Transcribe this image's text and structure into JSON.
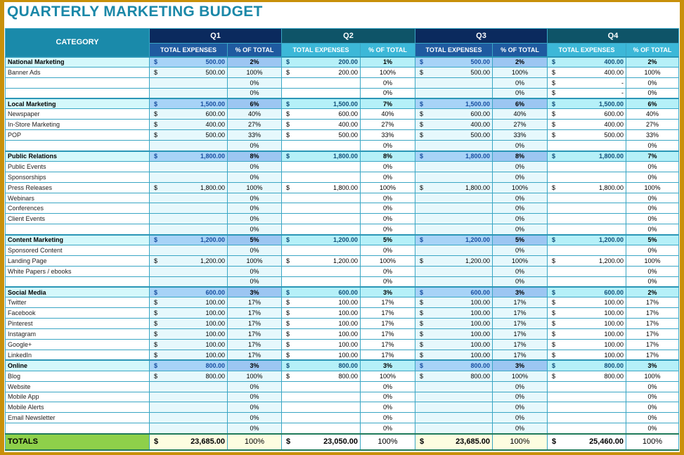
{
  "title": "QUARTERLY MARKETING BUDGET",
  "header": {
    "category": "CATEGORY",
    "quarters": [
      "Q1",
      "Q2",
      "Q3",
      "Q4"
    ],
    "total_expenses": "TOTAL EXPENSES",
    "pct_of_total": "% OF TOTAL"
  },
  "currency": "$",
  "colors": {
    "border": "#c8900a",
    "title": "#1b88a8",
    "q_dark": "#0b2a5e",
    "q_teal": "#0e5468",
    "totals": "#8ed04a"
  },
  "rows": [
    {
      "label": "National Marketing",
      "section": true,
      "q": [
        [
          "500.00",
          "2%"
        ],
        [
          "200.00",
          "1%"
        ],
        [
          "500.00",
          "2%"
        ],
        [
          "400.00",
          "2%"
        ]
      ]
    },
    {
      "label": "Banner Ads",
      "q": [
        [
          "500.00",
          "100%"
        ],
        [
          "200.00",
          "100%"
        ],
        [
          "500.00",
          "100%"
        ],
        [
          "400.00",
          "100%"
        ]
      ]
    },
    {
      "label": "",
      "q": [
        [
          null,
          "0%"
        ],
        [
          null,
          "0%"
        ],
        [
          null,
          "0%"
        ],
        [
          "-",
          "0%"
        ]
      ]
    },
    {
      "label": "",
      "q": [
        [
          null,
          "0%"
        ],
        [
          null,
          "0%"
        ],
        [
          null,
          "0%"
        ],
        [
          "-",
          "0%"
        ]
      ]
    },
    {
      "label": "Local Marketing",
      "section": true,
      "q": [
        [
          "1,500.00",
          "6%"
        ],
        [
          "1,500.00",
          "7%"
        ],
        [
          "1,500.00",
          "6%"
        ],
        [
          "1,500.00",
          "6%"
        ]
      ]
    },
    {
      "label": "Newspaper",
      "q": [
        [
          "600.00",
          "40%"
        ],
        [
          "600.00",
          "40%"
        ],
        [
          "600.00",
          "40%"
        ],
        [
          "600.00",
          "40%"
        ]
      ]
    },
    {
      "label": "In-Store Marketing",
      "q": [
        [
          "400.00",
          "27%"
        ],
        [
          "400.00",
          "27%"
        ],
        [
          "400.00",
          "27%"
        ],
        [
          "400.00",
          "27%"
        ]
      ]
    },
    {
      "label": "POP",
      "q": [
        [
          "500.00",
          "33%"
        ],
        [
          "500.00",
          "33%"
        ],
        [
          "500.00",
          "33%"
        ],
        [
          "500.00",
          "33%"
        ]
      ]
    },
    {
      "label": "",
      "q": [
        [
          null,
          "0%"
        ],
        [
          null,
          "0%"
        ],
        [
          null,
          "0%"
        ],
        [
          null,
          "0%"
        ]
      ]
    },
    {
      "label": "Public Relations",
      "section": true,
      "q": [
        [
          "1,800.00",
          "8%"
        ],
        [
          "1,800.00",
          "8%"
        ],
        [
          "1,800.00",
          "8%"
        ],
        [
          "1,800.00",
          "7%"
        ]
      ]
    },
    {
      "label": "Public Events",
      "q": [
        [
          null,
          "0%"
        ],
        [
          null,
          "0%"
        ],
        [
          null,
          "0%"
        ],
        [
          null,
          "0%"
        ]
      ]
    },
    {
      "label": "Sponsorships",
      "q": [
        [
          null,
          "0%"
        ],
        [
          null,
          "0%"
        ],
        [
          null,
          "0%"
        ],
        [
          null,
          "0%"
        ]
      ]
    },
    {
      "label": "Press Releases",
      "q": [
        [
          "1,800.00",
          "100%"
        ],
        [
          "1,800.00",
          "100%"
        ],
        [
          "1,800.00",
          "100%"
        ],
        [
          "1,800.00",
          "100%"
        ]
      ]
    },
    {
      "label": "Webinars",
      "q": [
        [
          null,
          "0%"
        ],
        [
          null,
          "0%"
        ],
        [
          null,
          "0%"
        ],
        [
          null,
          "0%"
        ]
      ]
    },
    {
      "label": "Conferences",
      "q": [
        [
          null,
          "0%"
        ],
        [
          null,
          "0%"
        ],
        [
          null,
          "0%"
        ],
        [
          null,
          "0%"
        ]
      ]
    },
    {
      "label": "Client Events",
      "q": [
        [
          null,
          "0%"
        ],
        [
          null,
          "0%"
        ],
        [
          null,
          "0%"
        ],
        [
          null,
          "0%"
        ]
      ]
    },
    {
      "label": "",
      "q": [
        [
          null,
          "0%"
        ],
        [
          null,
          "0%"
        ],
        [
          null,
          "0%"
        ],
        [
          null,
          "0%"
        ]
      ]
    },
    {
      "label": "Content Marketing",
      "section": true,
      "q": [
        [
          "1,200.00",
          "5%"
        ],
        [
          "1,200.00",
          "5%"
        ],
        [
          "1,200.00",
          "5%"
        ],
        [
          "1,200.00",
          "5%"
        ]
      ]
    },
    {
      "label": "Sponsored Content",
      "q": [
        [
          null,
          "0%"
        ],
        [
          null,
          "0%"
        ],
        [
          null,
          "0%"
        ],
        [
          null,
          "0%"
        ]
      ]
    },
    {
      "label": "Landing Page",
      "q": [
        [
          "1,200.00",
          "100%"
        ],
        [
          "1,200.00",
          "100%"
        ],
        [
          "1,200.00",
          "100%"
        ],
        [
          "1,200.00",
          "100%"
        ]
      ]
    },
    {
      "label": "White Papers / ebooks",
      "q": [
        [
          null,
          "0%"
        ],
        [
          null,
          "0%"
        ],
        [
          null,
          "0%"
        ],
        [
          null,
          "0%"
        ]
      ]
    },
    {
      "label": "",
      "q": [
        [
          null,
          "0%"
        ],
        [
          null,
          "0%"
        ],
        [
          null,
          "0%"
        ],
        [
          null,
          "0%"
        ]
      ]
    },
    {
      "label": "Social Media",
      "section": true,
      "q": [
        [
          "600.00",
          "3%"
        ],
        [
          "600.00",
          "3%"
        ],
        [
          "600.00",
          "3%"
        ],
        [
          "600.00",
          "2%"
        ]
      ]
    },
    {
      "label": "Twitter",
      "q": [
        [
          "100.00",
          "17%"
        ],
        [
          "100.00",
          "17%"
        ],
        [
          "100.00",
          "17%"
        ],
        [
          "100.00",
          "17%"
        ]
      ]
    },
    {
      "label": "Facebook",
      "q": [
        [
          "100.00",
          "17%"
        ],
        [
          "100.00",
          "17%"
        ],
        [
          "100.00",
          "17%"
        ],
        [
          "100.00",
          "17%"
        ]
      ]
    },
    {
      "label": "Pinterest",
      "q": [
        [
          "100.00",
          "17%"
        ],
        [
          "100.00",
          "17%"
        ],
        [
          "100.00",
          "17%"
        ],
        [
          "100.00",
          "17%"
        ]
      ]
    },
    {
      "label": "Instagram",
      "q": [
        [
          "100.00",
          "17%"
        ],
        [
          "100.00",
          "17%"
        ],
        [
          "100.00",
          "17%"
        ],
        [
          "100.00",
          "17%"
        ]
      ]
    },
    {
      "label": "Google+",
      "q": [
        [
          "100.00",
          "17%"
        ],
        [
          "100.00",
          "17%"
        ],
        [
          "100.00",
          "17%"
        ],
        [
          "100.00",
          "17%"
        ]
      ]
    },
    {
      "label": "LinkedIn",
      "q": [
        [
          "100.00",
          "17%"
        ],
        [
          "100.00",
          "17%"
        ],
        [
          "100.00",
          "17%"
        ],
        [
          "100.00",
          "17%"
        ]
      ]
    },
    {
      "label": "Online",
      "section": true,
      "q": [
        [
          "800.00",
          "3%"
        ],
        [
          "800.00",
          "3%"
        ],
        [
          "800.00",
          "3%"
        ],
        [
          "800.00",
          "3%"
        ]
      ]
    },
    {
      "label": "Blog",
      "q": [
        [
          "800.00",
          "100%"
        ],
        [
          "800.00",
          "100%"
        ],
        [
          "800.00",
          "100%"
        ],
        [
          "800.00",
          "100%"
        ]
      ]
    },
    {
      "label": "Website",
      "q": [
        [
          null,
          "0%"
        ],
        [
          null,
          "0%"
        ],
        [
          null,
          "0%"
        ],
        [
          null,
          "0%"
        ]
      ]
    },
    {
      "label": "Mobile App",
      "q": [
        [
          null,
          "0%"
        ],
        [
          null,
          "0%"
        ],
        [
          null,
          "0%"
        ],
        [
          null,
          "0%"
        ]
      ]
    },
    {
      "label": "Mobile Alerts",
      "q": [
        [
          null,
          "0%"
        ],
        [
          null,
          "0%"
        ],
        [
          null,
          "0%"
        ],
        [
          null,
          "0%"
        ]
      ]
    },
    {
      "label": "Email Newsletter",
      "q": [
        [
          null,
          "0%"
        ],
        [
          null,
          "0%"
        ],
        [
          null,
          "0%"
        ],
        [
          null,
          "0%"
        ]
      ]
    },
    {
      "label": "",
      "q": [
        [
          null,
          "0%"
        ],
        [
          null,
          "0%"
        ],
        [
          null,
          "0%"
        ],
        [
          null,
          "0%"
        ]
      ]
    }
  ],
  "totals": {
    "label": "TOTALS",
    "q": [
      [
        "23,685.00",
        "100%"
      ],
      [
        "23,050.00",
        "100%"
      ],
      [
        "23,685.00",
        "100%"
      ],
      [
        "25,460.00",
        "100%"
      ]
    ]
  }
}
